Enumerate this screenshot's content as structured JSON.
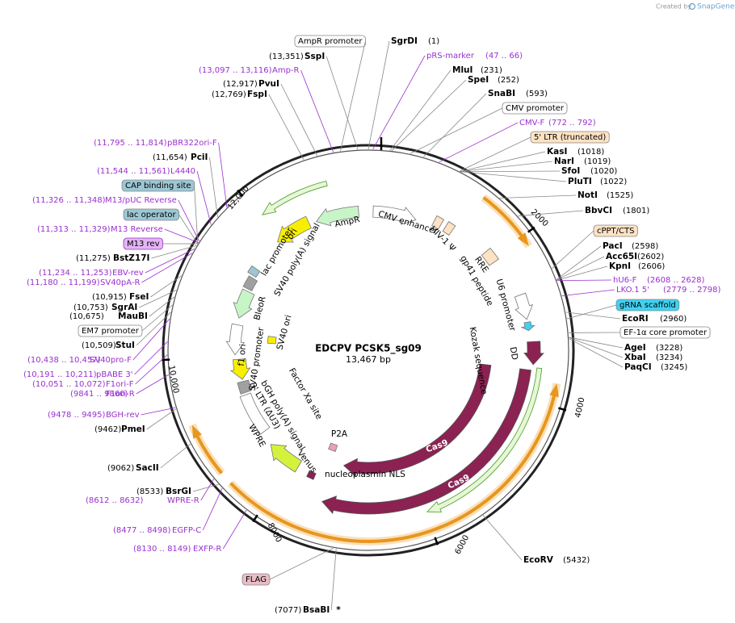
{
  "credit": {
    "prefix": "Created by",
    "brand": "SnapGene"
  },
  "map": {
    "name": "EDCPV PCSK5_sg09",
    "length": "13,467 bp"
  },
  "enzymes": [
    {
      "name": "SgrDI",
      "location": "(1)"
    },
    {
      "name": "SspI",
      "location": "(13,351)"
    },
    {
      "name": "MluI",
      "location": "(231)"
    },
    {
      "name": "PvuI",
      "location": "(12,917)"
    },
    {
      "name": "SpeI",
      "location": "(252)"
    },
    {
      "name": "FspI",
      "location": "(12,769)"
    },
    {
      "name": "SnaBI",
      "location": "(593)"
    },
    {
      "name": "KasI",
      "location": "(1018)"
    },
    {
      "name": "PciI",
      "location": "(11,654)"
    },
    {
      "name": "NarI",
      "location": "(1019)"
    },
    {
      "name": "SfoI",
      "location": "(1020)"
    },
    {
      "name": "PluTI",
      "location": "(1022)"
    },
    {
      "name": "NotI",
      "location": "(1525)"
    },
    {
      "name": "BbvCI",
      "location": "(1801)"
    },
    {
      "name": "PacI",
      "location": "(2598)"
    },
    {
      "name": "BstZ17I",
      "location": "(11,275)"
    },
    {
      "name": "Acc65I",
      "location": "(2602)"
    },
    {
      "name": "KpnI",
      "location": "(2606)"
    },
    {
      "name": "FseI",
      "location": "(10,915)"
    },
    {
      "name": "SgrAI",
      "location": "(10,753)"
    },
    {
      "name": "MauBI",
      "location": "(10,675)"
    },
    {
      "name": "EcoRI",
      "location": "(2960)"
    },
    {
      "name": "StuI",
      "location": "(10,509)"
    },
    {
      "name": "AgeI",
      "location": "(3228)"
    },
    {
      "name": "XbaI",
      "location": "(3234)"
    },
    {
      "name": "PaqCI",
      "location": "(3245)"
    },
    {
      "name": "PmeI",
      "location": "(9462)"
    },
    {
      "name": "SacII",
      "location": "(9062)"
    },
    {
      "name": "BsrGI",
      "location": "(8533)"
    },
    {
      "name": "EcoRV",
      "location": "(5432)"
    },
    {
      "name": "BsaBI",
      "location": "(7077)",
      "mark": "*"
    }
  ],
  "primers": [
    {
      "name": "pRS-marker",
      "range": "(47 .. 66)"
    },
    {
      "name": "Amp-R",
      "range": "(13,097 .. 13,116)"
    },
    {
      "name": "CMV-F",
      "range": "(772 .. 792)"
    },
    {
      "name": "pBR322ori-F",
      "range": "(11,795 .. 11,814)"
    },
    {
      "name": "L4440",
      "range": "(11,544 .. 11,561)"
    },
    {
      "name": "M13/pUC Reverse",
      "range": "(11,326 .. 11,348)"
    },
    {
      "name": "M13 Reverse",
      "range": "(11,313 .. 11,329)"
    },
    {
      "name": "EBV-rev",
      "range": "(11,234 .. 11,253)"
    },
    {
      "name": "SV40pA-R",
      "range": "(11,180 .. 11,199)"
    },
    {
      "name": "hU6-F",
      "range": "(2608 .. 2628)"
    },
    {
      "name": "LKO.1 5'",
      "range": "(2779 .. 2798)"
    },
    {
      "name": "SV40pro-F",
      "range": "(10,438 .. 10,457)"
    },
    {
      "name": "pBABE 3'",
      "range": "(10,191 .. 10,211)"
    },
    {
      "name": "F1ori-F",
      "range": "(10,051 .. 10,072)"
    },
    {
      "name": "F1ori-R",
      "range": "(9841 .. 9860)"
    },
    {
      "name": "BGH-rev",
      "range": "(9478 .. 9495)"
    },
    {
      "name": "WPRE-R",
      "range": "(8612 .. 8632)"
    },
    {
      "name": "EGFP-C",
      "range": "(8477 .. 8498)"
    },
    {
      "name": "EXFP-R",
      "range": "(8130 .. 8149)"
    }
  ],
  "tags": [
    {
      "text": "AmpR promoter",
      "color": "#ffffff"
    },
    {
      "text": "CMV promoter",
      "color": "#ffffff"
    },
    {
      "text": "5' LTR (truncated)",
      "color": "#fde2c4"
    },
    {
      "text": "CAP binding site",
      "color": "#9cc6d4"
    },
    {
      "text": "lac operator",
      "color": "#9cc6d4"
    },
    {
      "text": "cPPT/CTS",
      "color": "#fde2c4"
    },
    {
      "text": "M13 rev",
      "color": "#e3b5f2"
    },
    {
      "text": "gRNA scaffold",
      "color": "#3fd2f2"
    },
    {
      "text": "EM7 promoter",
      "color": "#ffffff"
    },
    {
      "text": "EF-1α core promoter",
      "color": "#ffffff"
    },
    {
      "text": "FLAG",
      "color": "#e9bcc5"
    }
  ],
  "inner_labels": [
    "AmpR",
    "CMV enhancer",
    "HIV-1 Ψ",
    "RRE",
    "gp41 peptide",
    "U6 promoter",
    "ori",
    "lac promoter",
    "SV40 poly(A) signal",
    "BleoR",
    "SV40 ori",
    "SV40 promoter",
    "f1 ori",
    "Kozak sequence",
    "DD",
    "Factor Xa site",
    "bGH poly(A) signal",
    "3' LTR (ΔU3)",
    "WPRE",
    "P2A",
    "Venus",
    "nucleoplasmin NLS",
    "Cas9",
    "Cas9"
  ],
  "ring_ticks": [
    "2000",
    "4000",
    "6000",
    "8000",
    "10,000",
    "12,000"
  ]
}
